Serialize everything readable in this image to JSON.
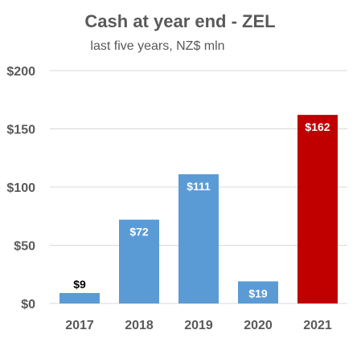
{
  "chart_data": {
    "type": "bar",
    "title": "Cash at year end - ZEL",
    "subtitle": "last five years, NZ$ mln",
    "xlabel": "",
    "ylabel": "",
    "categories": [
      "2017",
      "2018",
      "2019",
      "2020",
      "2021"
    ],
    "values": [
      9,
      72,
      111,
      19,
      162
    ],
    "value_labels": [
      "$9",
      "$72",
      "$111",
      "$19",
      "$162"
    ],
    "bar_colors": [
      "#5b9bd5",
      "#5b9bd5",
      "#5b9bd5",
      "#5b9bd5",
      "#c00000"
    ],
    "value_label_colors": [
      "#000000",
      "#ffffff",
      "#ffffff",
      "#ffffff",
      "#ffffff"
    ],
    "ylim": [
      0,
      200
    ],
    "yticks": [
      0,
      50,
      100,
      150,
      200
    ],
    "ytick_labels": [
      "$0",
      "$50",
      "$100",
      "$150",
      "$200"
    ],
    "grid": true,
    "legend": "none"
  }
}
